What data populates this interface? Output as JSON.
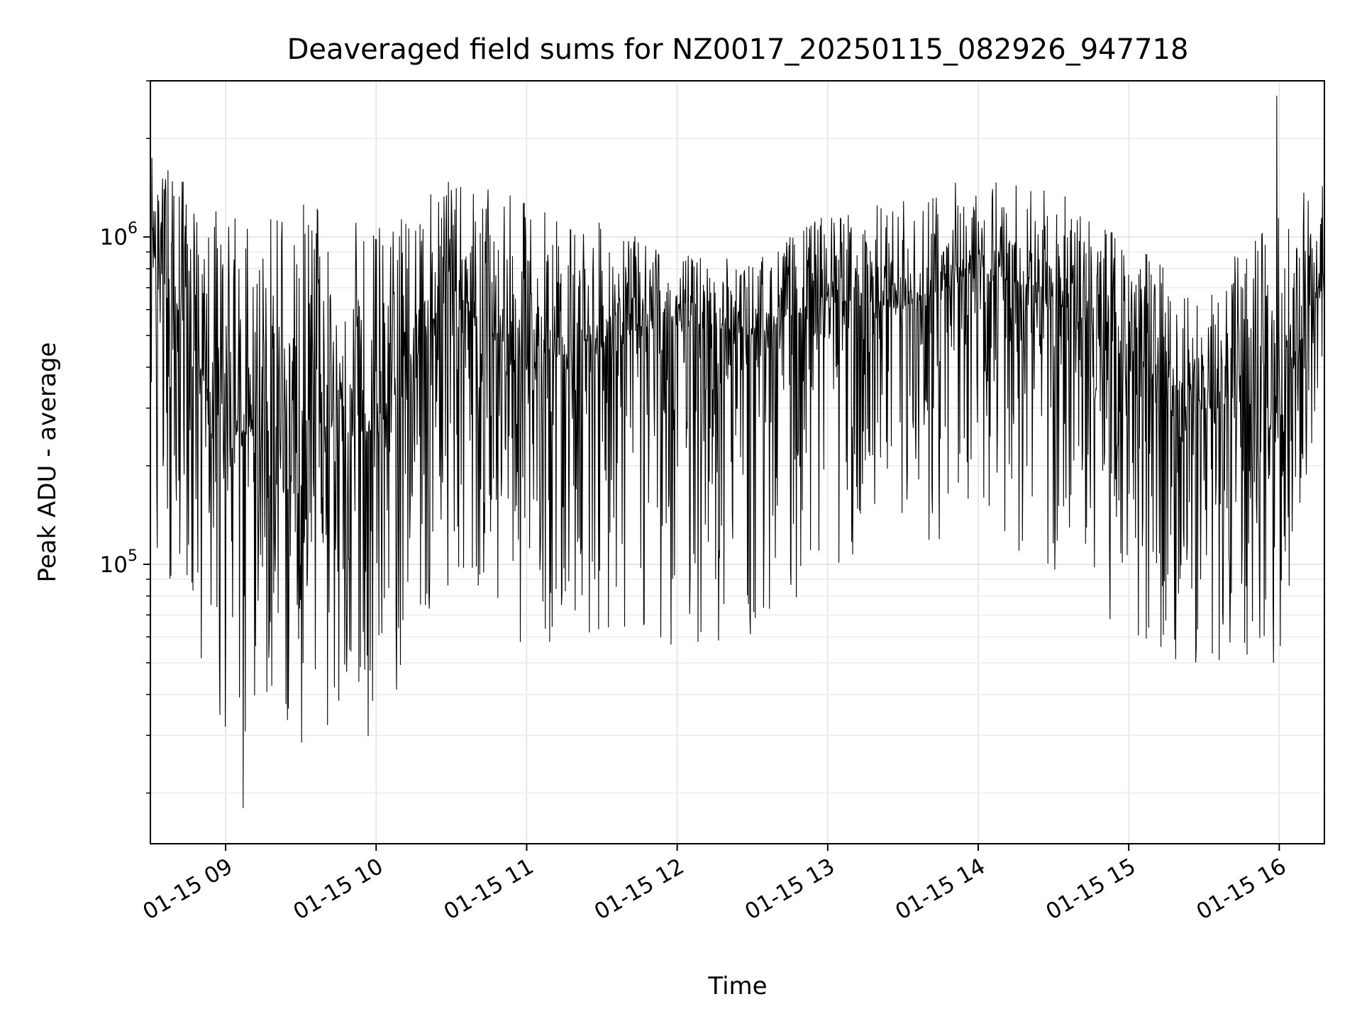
{
  "chart_data": {
    "type": "line",
    "title": "Deaveraged field sums for NZ0017_20250115_082926_947718",
    "xlabel": "Time",
    "ylabel": "Peak ADU - average",
    "yscale": "log",
    "xlim": [
      "2025-01-15 08:30",
      "2025-01-15 16:18"
    ],
    "ylim": [
      14000,
      3000000
    ],
    "x_ticks": [
      "01-15 09",
      "01-15 10",
      "01-15 11",
      "01-15 12",
      "01-15 13",
      "01-15 14",
      "01-15 15",
      "01-15 16"
    ],
    "y_ticks": [
      {
        "base": "10",
        "exp": "5",
        "value": 100000
      },
      {
        "base": "10",
        "exp": "6",
        "value": 1000000
      }
    ],
    "grid": true,
    "line_color": "#000000",
    "series_profile": {
      "note_times": [
        "08:30",
        "09:00",
        "09:30",
        "10:00",
        "10:30",
        "11:00",
        "11:30",
        "12:00",
        "12:30",
        "13:00",
        "13:30",
        "14:00",
        "14:30",
        "15:00",
        "15:30",
        "16:00",
        "16:15"
      ],
      "upper_envelope": [
        1800000,
        1200000,
        1300000,
        1100000,
        1500000,
        1300000,
        1100000,
        900000,
        850000,
        1200000,
        1300000,
        1600000,
        1400000,
        1000000,
        700000,
        1200000,
        1500000
      ],
      "median": [
        900000,
        250000,
        280000,
        250000,
        700000,
        400000,
        500000,
        550000,
        500000,
        650000,
        600000,
        800000,
        650000,
        450000,
        300000,
        300000,
        700000
      ],
      "lower_envelope": [
        110000,
        30000,
        28000,
        30000,
        90000,
        55000,
        60000,
        55000,
        55000,
        100000,
        90000,
        150000,
        80000,
        60000,
        45000,
        50000,
        300000
      ],
      "min_point": {
        "time": "09:07",
        "value": 18000
      },
      "max_point": {
        "time": "15:59",
        "value": 2700000
      }
    }
  }
}
